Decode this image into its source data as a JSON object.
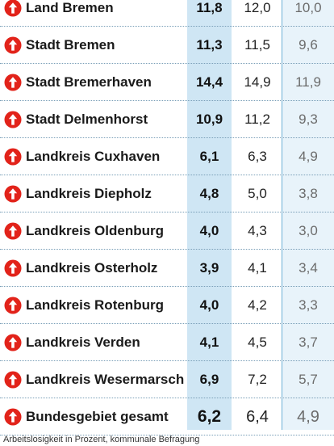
{
  "chart_data": {
    "type": "table",
    "columns": [
      "",
      "",
      "",
      ""
    ],
    "rows": [
      {
        "name": "Land Bremen",
        "current": "11,8",
        "previous": "12,0",
        "earlier": "10,0",
        "trend": "up"
      },
      {
        "name": "Stadt Bremen",
        "current": "11,3",
        "previous": "11,5",
        "earlier": "9,6",
        "trend": "up"
      },
      {
        "name": "Stadt Bremerhaven",
        "current": "14,4",
        "previous": "14,9",
        "earlier": "11,9",
        "trend": "up"
      },
      {
        "name": "Stadt Delmenhorst",
        "current": "10,9",
        "previous": "11,2",
        "earlier": "9,3",
        "trend": "up"
      },
      {
        "name": "Landkreis Cuxhaven",
        "current": "6,1",
        "previous": "6,3",
        "earlier": "4,9",
        "trend": "up"
      },
      {
        "name": "Landkreis Diepholz",
        "current": "4,8",
        "previous": "5,0",
        "earlier": "3,8",
        "trend": "up"
      },
      {
        "name": "Landkreis Oldenburg",
        "current": "4,0",
        "previous": "4,3",
        "earlier": "3,0",
        "trend": "up"
      },
      {
        "name": "Landkreis Osterholz",
        "current": "3,9",
        "previous": "4,1",
        "earlier": "3,4",
        "trend": "up"
      },
      {
        "name": "Landkreis Rotenburg",
        "current": "4,0",
        "previous": "4,2",
        "earlier": "3,3",
        "trend": "up"
      },
      {
        "name": "Landkreis Verden",
        "current": "4,1",
        "previous": "4,5",
        "earlier": "3,7",
        "trend": "up"
      },
      {
        "name": "Landkreis Wesermarsch",
        "current": "6,9",
        "previous": "7,2",
        "earlier": "5,7",
        "trend": "up"
      },
      {
        "name": "Bundesgebiet gesamt",
        "current": "6,2",
        "previous": "6,4",
        "earlier": "4,9",
        "trend": "up"
      }
    ]
  },
  "footnote": "Arbeitslosigkeit in Prozent, kommunale Befragung",
  "colors": {
    "arrow": "#e2231a",
    "current_column": "#cfe6f4",
    "earlier_column": "#e8f3fa",
    "divider": "#6fb1d6"
  },
  "icons": {
    "trend_up": "arrow-up-circle-icon"
  }
}
